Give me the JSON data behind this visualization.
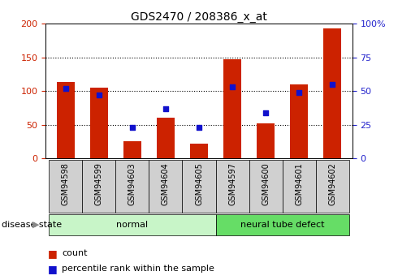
{
  "title": "GDS2470 / 208386_x_at",
  "samples": [
    "GSM94598",
    "GSM94599",
    "GSM94603",
    "GSM94604",
    "GSM94605",
    "GSM94597",
    "GSM94600",
    "GSM94601",
    "GSM94602"
  ],
  "counts": [
    113,
    105,
    25,
    60,
    22,
    147,
    52,
    110,
    193
  ],
  "percentiles": [
    52,
    47,
    23,
    37,
    23,
    53,
    34,
    49,
    55
  ],
  "groups": [
    {
      "label": "normal",
      "span": [
        0,
        4
      ],
      "color": "#c8f5c8"
    },
    {
      "label": "neural tube defect",
      "span": [
        5,
        8
      ],
      "color": "#66dd66"
    }
  ],
  "bar_color": "#cc2200",
  "dot_color": "#1111cc",
  "left_axis_color": "#cc2200",
  "right_axis_color": "#2222cc",
  "ylim_left": [
    0,
    200
  ],
  "ylim_right": [
    0,
    100
  ],
  "yticks_left": [
    0,
    50,
    100,
    150,
    200
  ],
  "yticks_right": [
    0,
    25,
    50,
    75,
    100
  ],
  "ytick_labels_right": [
    "0",
    "25",
    "50",
    "75",
    "100%"
  ],
  "grid_values": [
    50,
    100,
    150
  ],
  "legend_count_label": "count",
  "legend_pct_label": "percentile rank within the sample",
  "disease_state_label": "disease state",
  "background_color": "#ffffff",
  "tick_label_bg": "#d0d0d0",
  "bar_width": 0.55
}
